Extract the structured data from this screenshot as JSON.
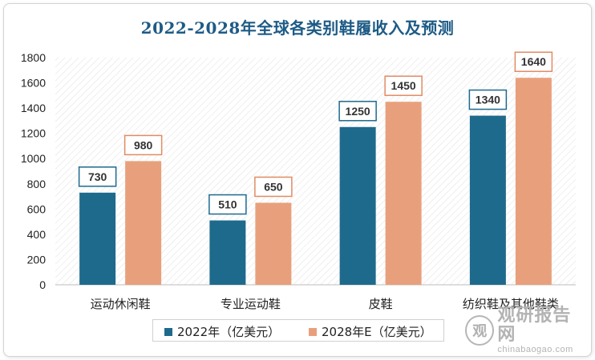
{
  "chart_data": {
    "type": "bar",
    "title": "2022-2028年全球各类别鞋履收入及预测",
    "categories": [
      "运动休闲鞋",
      "专业运动鞋",
      "皮鞋",
      "纺织鞋及其他鞋类"
    ],
    "series": [
      {
        "name": "2022年（亿美元）",
        "values": [
          730,
          510,
          1250,
          1340
        ],
        "color": "#1e6a8d"
      },
      {
        "name": "2028年E（亿美元）",
        "values": [
          980,
          650,
          1450,
          1640
        ],
        "color": "#e8a07c"
      }
    ],
    "ylim": [
      0,
      1800
    ],
    "yticks": [
      0,
      200,
      400,
      600,
      800,
      1000,
      1200,
      1400,
      1600,
      1800
    ],
    "xlabel": "",
    "ylabel": "",
    "legend": "bottom",
    "grid": false,
    "data_labels": true
  },
  "watermark": {
    "logo_glyph": "观",
    "main_text": "观研报告网",
    "url_text": "chinabaogao.com"
  }
}
